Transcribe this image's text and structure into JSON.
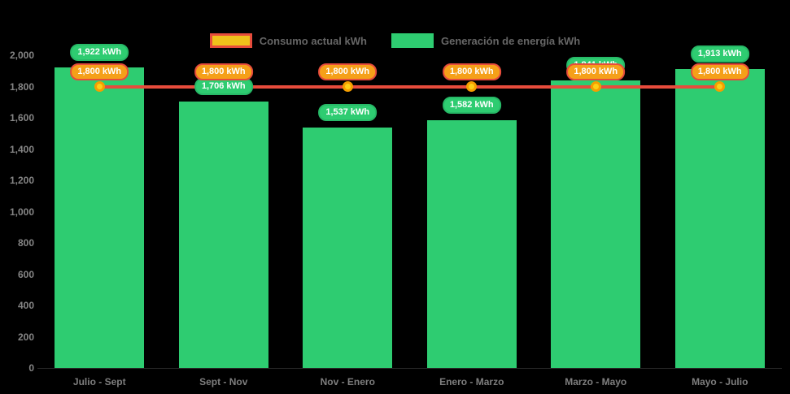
{
  "chart_data": {
    "type": "bar",
    "title": "",
    "xlabel": "",
    "ylabel": "",
    "categories": [
      "Julio - Sept",
      "Sept - Nov",
      "Nov - Enero",
      "Enero - Marzo",
      "Marzo - Mayo",
      "Mayo - Julio"
    ],
    "series": [
      {
        "name": "Consumo actual kWh",
        "type": "line",
        "values": [
          1800,
          1800,
          1800,
          1800,
          1800,
          1800
        ],
        "point_labels": [
          "1,800 kWh",
          "1,800 kWh",
          "1,800 kWh",
          "1,800 kWh",
          "1,800 kWh",
          "1,800 kWh"
        ],
        "color": "#e74c3c"
      },
      {
        "name": "Generación de energía kWh",
        "type": "bar",
        "values": [
          1922,
          1706,
          1537,
          1582,
          1841,
          1913
        ],
        "point_labels": [
          "1,922 kWh",
          "1,706 kWh",
          "1,537 kWh",
          "1,582 kWh",
          "1,841 kWh",
          "1,913 kWh"
        ],
        "color": "#2ecc71"
      }
    ],
    "ylim": [
      0,
      2000
    ],
    "yticks": {
      "values": [
        0,
        200,
        400,
        600,
        800,
        1000,
        1200,
        1400,
        1600,
        1800,
        2000
      ],
      "labels": [
        "0",
        "200",
        "400",
        "600",
        "800",
        "1,000",
        "1,200",
        "1,400",
        "1,600",
        "1,800",
        "2,000"
      ]
    },
    "grid": false,
    "legend_position": "top"
  },
  "colors": {
    "background": "#000000",
    "bar_green": "#2ecc71",
    "line_red": "#e74c3c",
    "marker_fill": "#fdd017",
    "marker_border": "#f59e00",
    "badge_green_bg": "#2ecc71",
    "badge_orange_bg": "#f5a019",
    "badge_orange_border": "#e74c3c",
    "legend_swatch_consumo_fill": "#f0c11b",
    "legend_swatch_consumo_border": "#e74c3c",
    "axis_text": "#858585",
    "legend_text": "#666666"
  }
}
